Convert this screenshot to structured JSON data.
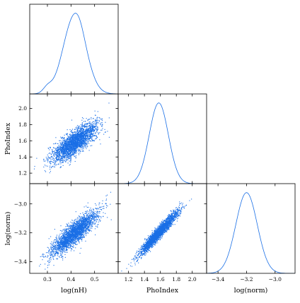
{
  "chart_data": {
    "type": "corner",
    "colors": {
      "series": "#1a6fe6",
      "axes": "#000000",
      "background": "#ffffff"
    },
    "parameters": [
      {
        "name": "log(nH)",
        "label": "log(nH)",
        "mean": 0.415,
        "sd": 0.048,
        "range": [
          0.225,
          0.6
        ],
        "ticks": [
          0.3,
          0.4,
          0.5
        ],
        "tick_labels": [
          "0.3",
          "0.4",
          "0.5"
        ]
      },
      {
        "name": "PhoIndex",
        "label": "PhoIndex",
        "mean": 1.58,
        "sd": 0.12,
        "range": [
          1.07,
          2.18
        ],
        "ticks": [
          1.2,
          1.4,
          1.6,
          1.8,
          2.0
        ],
        "tick_labels": [
          "1.2",
          "1.4",
          "1.6",
          "1.8",
          "2.0"
        ]
      },
      {
        "name": "log(norm)",
        "label": "log(norm)",
        "mean": -3.2,
        "sd": 0.075,
        "range": [
          -3.48,
          -2.86
        ],
        "ticks": [
          -3.4,
          -3.2,
          -3.0
        ],
        "tick_labels": [
          "−3.4",
          "−3.2",
          "−3.0"
        ]
      }
    ],
    "y_tick_sets": {
      "PhoIndex": {
        "ticks": [
          1.2,
          1.4,
          1.6,
          1.8,
          2.0
        ],
        "tick_labels": [
          "1.2",
          "1.4",
          "1.6",
          "1.8",
          "2.0"
        ]
      },
      "log(norm)": {
        "ticks": [
          -3.4,
          -3.2,
          -3.0
        ],
        "tick_labels": [
          "−3.4",
          "−3.2",
          "−3.0"
        ]
      }
    },
    "correlations": [
      {
        "x": "log(nH)",
        "y": "PhoIndex",
        "rho": 0.78
      },
      {
        "x": "log(nH)",
        "y": "log(norm)",
        "rho": 0.85
      },
      {
        "x": "PhoIndex",
        "y": "log(norm)",
        "rho": 0.96
      }
    ],
    "samples_per_panel": 2600,
    "diagonal": "kde",
    "off_diagonal": "scatter"
  }
}
